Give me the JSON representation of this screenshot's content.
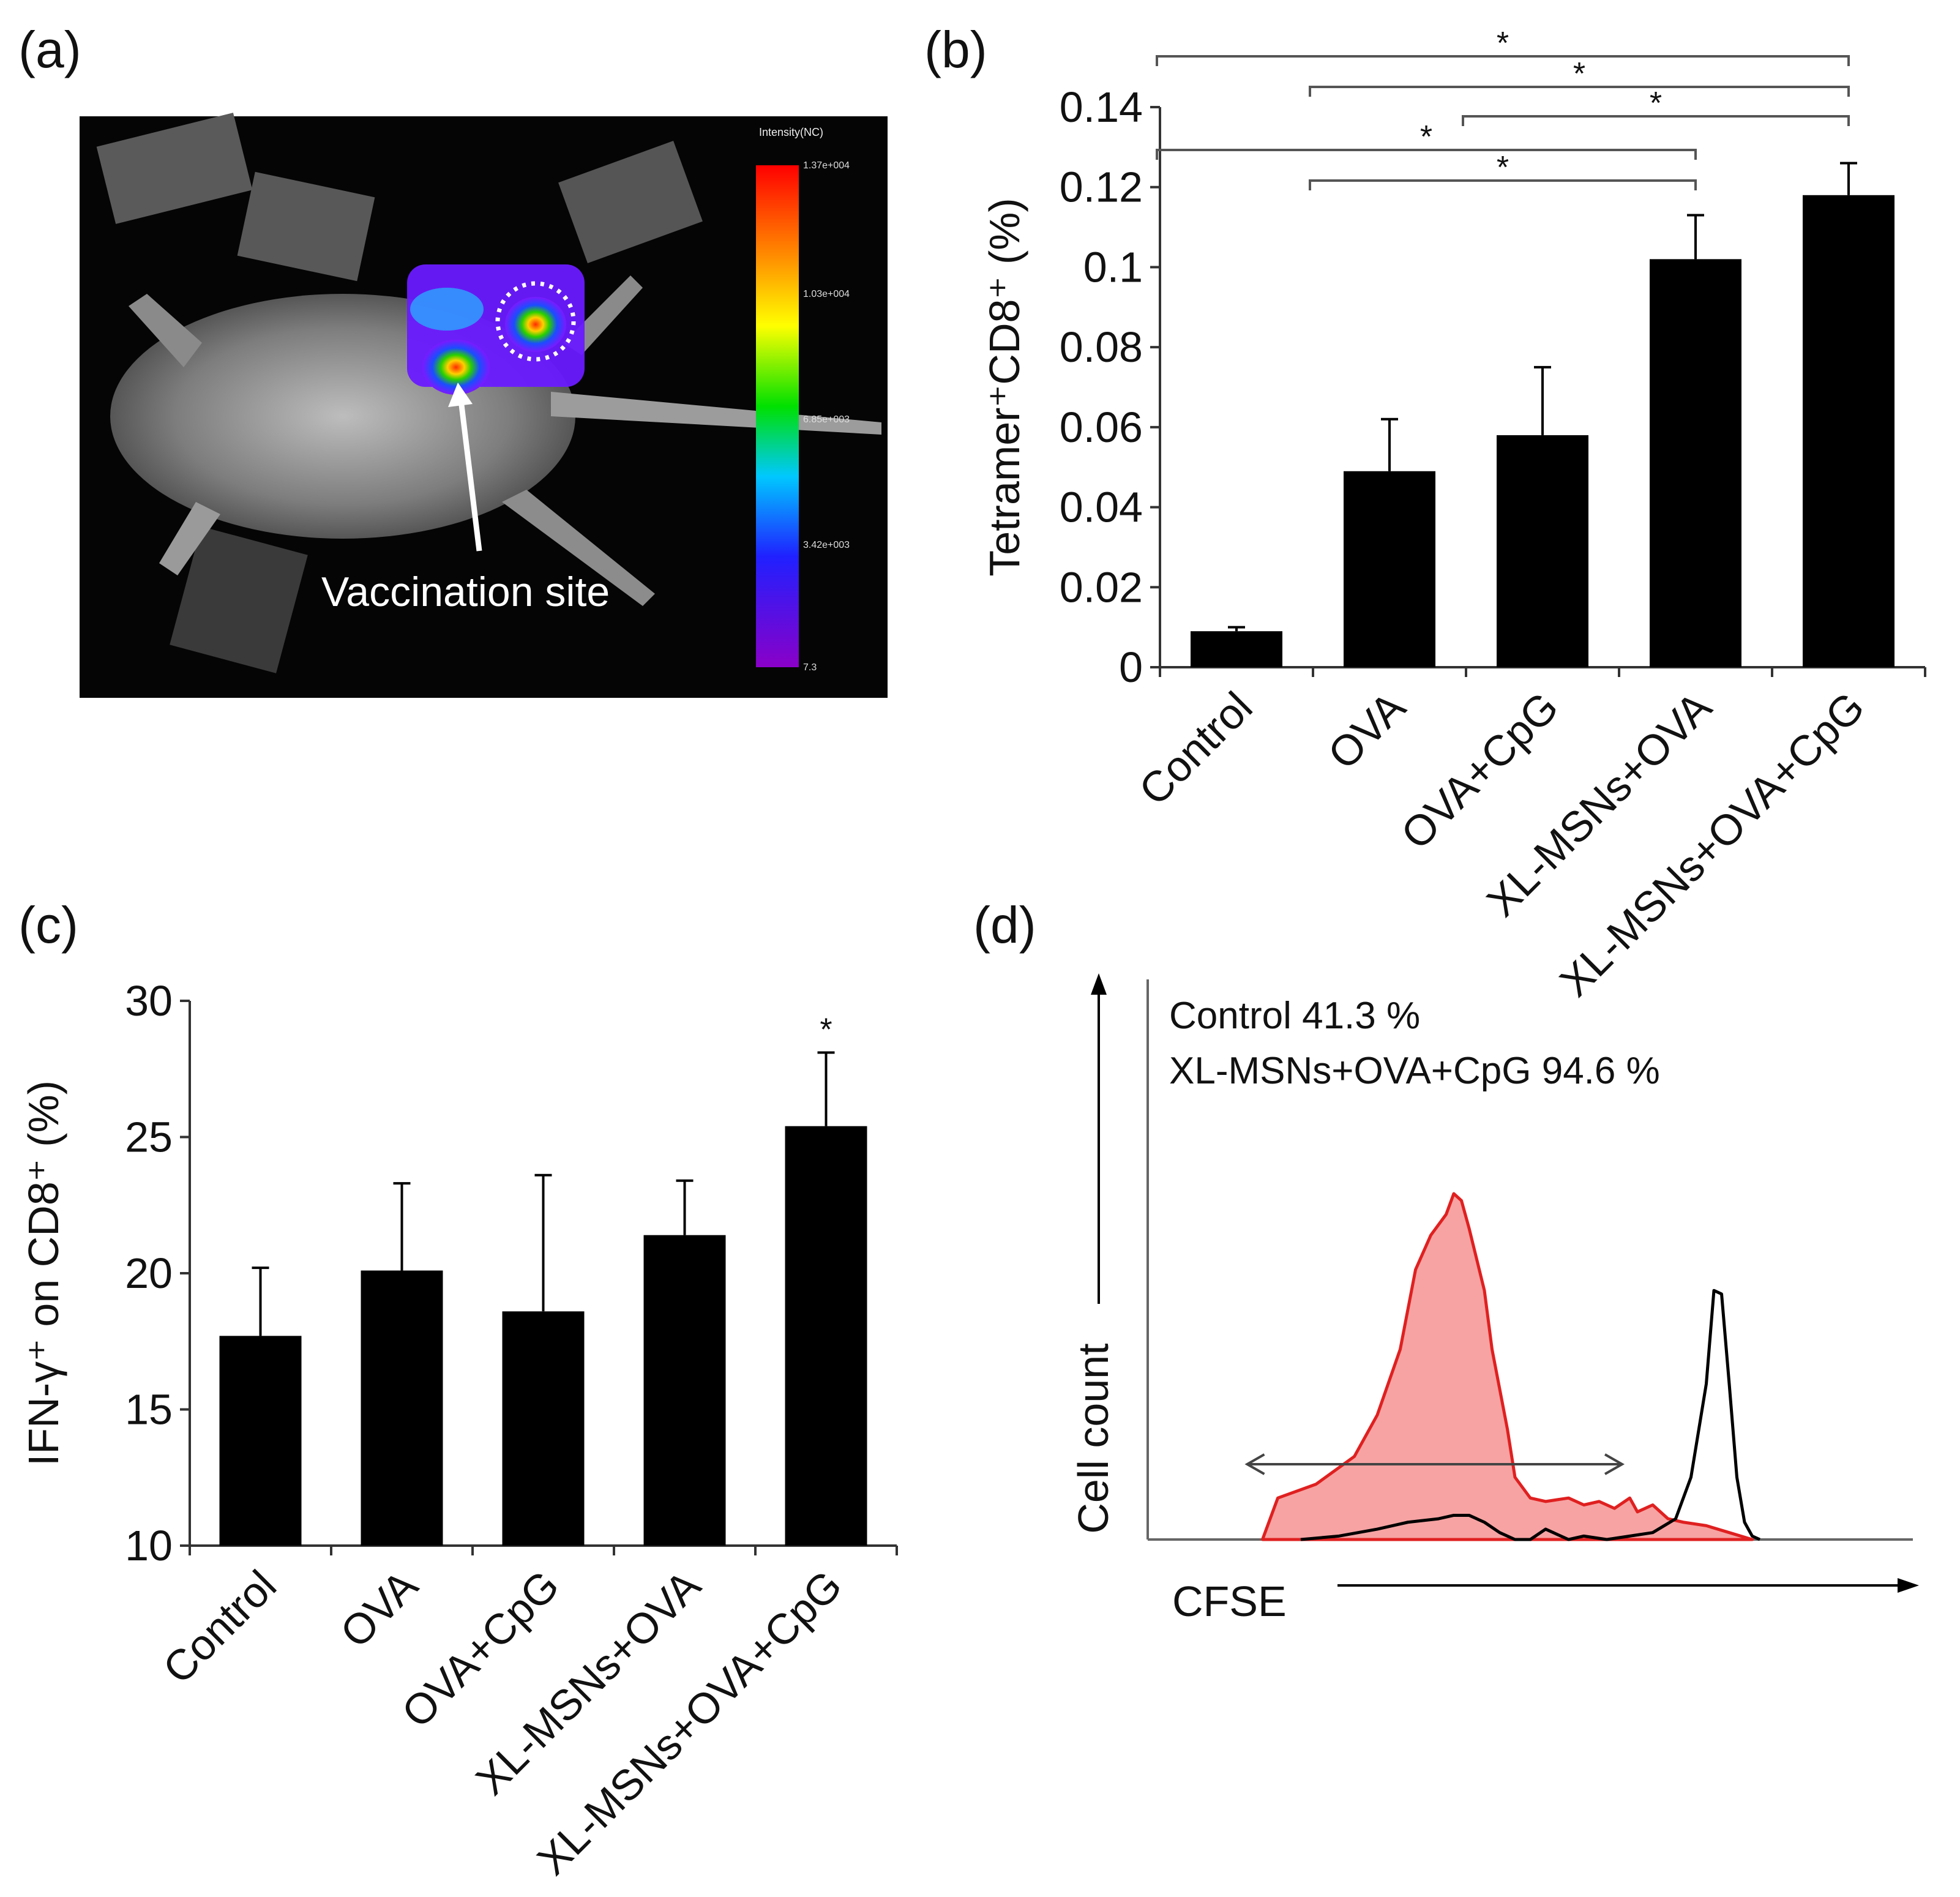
{
  "panels": {
    "a": {
      "label": "(a)",
      "annotation": "Vaccination  site",
      "colorbar": {
        "title": "Intensity(NC)",
        "ticks": [
          "1.37e+004",
          "1.03e+004",
          "6.85e+003",
          "3.42e+003",
          "7.3"
        ]
      }
    },
    "b": {
      "label": "(b)"
    },
    "c": {
      "label": "(c)"
    },
    "d": {
      "label": "(d)"
    }
  },
  "chart_data": [
    {
      "panel": "b",
      "type": "bar",
      "categories": [
        "Control",
        "OVA",
        "OVA+CpG",
        "XL-MSNs+OVA",
        "XL-MSNs+OVA+CpG"
      ],
      "values": [
        0.009,
        0.049,
        0.058,
        0.102,
        0.118
      ],
      "errors": [
        0.001,
        0.013,
        0.017,
        0.011,
        0.008
      ],
      "ylabel": "Tetramer⁺CD8⁺ (%)",
      "ylim": [
        0,
        0.14
      ],
      "yticks": [
        "0",
        "0.02",
        "0.04",
        "0.06",
        "0.08",
        "0.1",
        "0.12",
        "0.14"
      ],
      "significance": [
        {
          "from": 0,
          "to": 4,
          "label": "*"
        },
        {
          "from": 1,
          "to": 4,
          "label": "*"
        },
        {
          "from": 2,
          "to": 4,
          "label": "*"
        },
        {
          "from": 0,
          "to": 3,
          "label": "*"
        },
        {
          "from": 1,
          "to": 3,
          "label": "*"
        }
      ],
      "bar_color": "#000000"
    },
    {
      "panel": "c",
      "type": "bar",
      "categories": [
        "Control",
        "OVA",
        "OVA+CpG",
        "XL-MSNs+OVA",
        "XL-MSNs+OVA+CpG"
      ],
      "values": [
        17.7,
        20.1,
        18.6,
        21.4,
        25.4
      ],
      "errors": [
        2.5,
        3.2,
        5.0,
        2.0,
        2.7
      ],
      "ylabel": "IFN-γ⁺ on CD8⁺ (%)",
      "ylim": [
        10,
        30
      ],
      "yticks": [
        "10",
        "15",
        "20",
        "25",
        "30"
      ],
      "significance": [
        {
          "bar": 4,
          "label": "*"
        }
      ],
      "bar_color": "#000000"
    },
    {
      "panel": "d",
      "type": "area",
      "xlabel": "CFSE",
      "ylabel": "Cell count",
      "legend": [
        "Control  41.3 %",
        "XL-MSNs+OVA+CpG 94.6 %"
      ],
      "series": [
        {
          "name": "XL-MSNs+OVA+CpG",
          "fill": "#f7a3a3",
          "stroke": "#e02020",
          "x": [
            0.15,
            0.17,
            0.22,
            0.27,
            0.3,
            0.33,
            0.35,
            0.37,
            0.39,
            0.4,
            0.41,
            0.42,
            0.44,
            0.45,
            0.47,
            0.48,
            0.5,
            0.52,
            0.55,
            0.57,
            0.59,
            0.61,
            0.63,
            0.64,
            0.66,
            0.68,
            0.7,
            0.73,
            0.76,
            0.79
          ],
          "y": [
            0.0,
            0.12,
            0.16,
            0.24,
            0.36,
            0.55,
            0.78,
            0.88,
            0.94,
            1.0,
            0.98,
            0.9,
            0.72,
            0.55,
            0.32,
            0.18,
            0.12,
            0.11,
            0.12,
            0.1,
            0.11,
            0.09,
            0.12,
            0.08,
            0.1,
            0.06,
            0.05,
            0.04,
            0.02,
            0.0
          ]
        },
        {
          "name": "Control",
          "fill": "none",
          "stroke": "#000000",
          "x": [
            0.2,
            0.25,
            0.3,
            0.34,
            0.38,
            0.4,
            0.42,
            0.44,
            0.46,
            0.48,
            0.5,
            0.52,
            0.54,
            0.55,
            0.57,
            0.6,
            0.63,
            0.66,
            0.69,
            0.71,
            0.73,
            0.74,
            0.75,
            0.76,
            0.77,
            0.78,
            0.79,
            0.8
          ],
          "y": [
            0.0,
            0.01,
            0.03,
            0.05,
            0.06,
            0.07,
            0.07,
            0.05,
            0.02,
            0.0,
            0.0,
            0.03,
            0.01,
            0.0,
            0.01,
            0.0,
            0.01,
            0.02,
            0.06,
            0.18,
            0.45,
            0.72,
            0.71,
            0.45,
            0.18,
            0.05,
            0.01,
            0.0
          ]
        }
      ],
      "gate_range": [
        0.13,
        0.62
      ]
    }
  ]
}
